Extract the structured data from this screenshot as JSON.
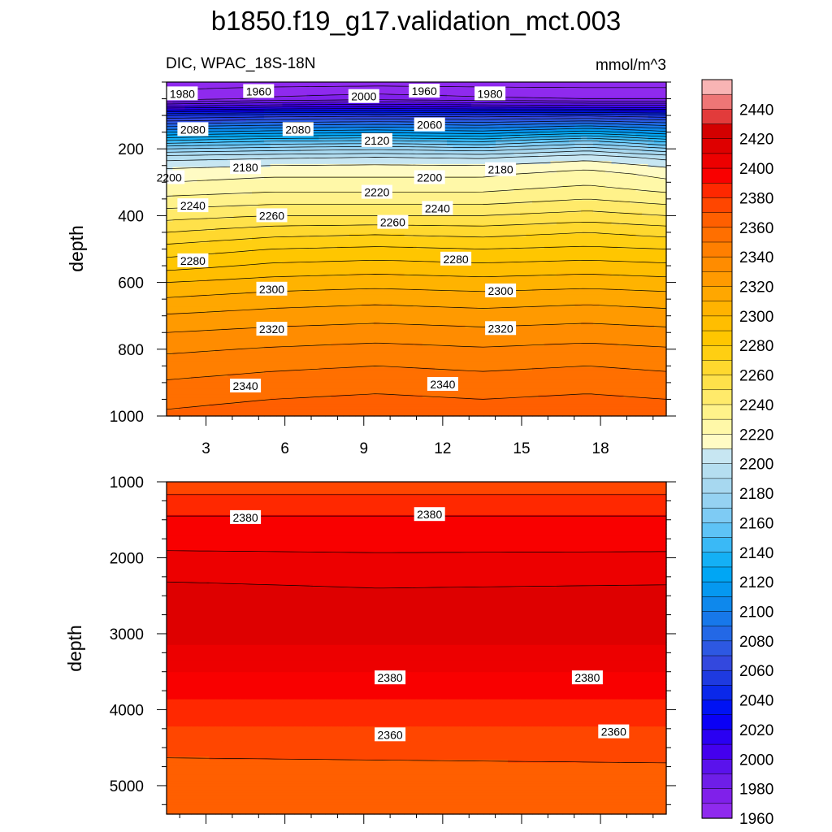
{
  "title": "b1850.f19_g17.validation_mct.003",
  "chart_data": {
    "type": "contour",
    "variable_label": "DIC, WPAC_18S-18N",
    "units": "mmol/m^3",
    "ylabel": "depth",
    "x_ticks": [
      3,
      6,
      9,
      12,
      15,
      18
    ],
    "x_range": [
      1.5,
      20.5
    ],
    "levels": [
      1950,
      1960,
      1970,
      1980,
      1990,
      2000,
      2010,
      2020,
      2030,
      2040,
      2050,
      2060,
      2070,
      2080,
      2090,
      2100,
      2110,
      2120,
      2130,
      2140,
      2150,
      2160,
      2170,
      2180,
      2190,
      2200,
      2210,
      2220,
      2230,
      2240,
      2250,
      2260,
      2270,
      2280,
      2290,
      2300,
      2310,
      2320,
      2330,
      2340,
      2350,
      2360,
      2370,
      2380,
      2390,
      2400,
      2410,
      2420,
      2430,
      2440,
      2450
    ],
    "colorbar": {
      "labels": [
        "2440",
        "2420",
        "2400",
        "2380",
        "2360",
        "2340",
        "2320",
        "2300",
        "2280",
        "2260",
        "2240",
        "2220",
        "2200",
        "2180",
        "2160",
        "2140",
        "2120",
        "2100",
        "2080",
        "2060",
        "2040",
        "2020",
        "2000",
        "1980",
        "1960"
      ],
      "colors": [
        "#f8b4b4",
        "#ee7676",
        "#e23b3b",
        "#d30000",
        "#de0000",
        "#ed0000",
        "#f90000",
        "#ff2800",
        "#ff4600",
        "#ff5f00",
        "#ff6f00",
        "#ff7f00",
        "#ff8c00",
        "#ff9a00",
        "#ffa700",
        "#ffb300",
        "#ffbe00",
        "#ffc600",
        "#ffcf12",
        "#ffd82e",
        "#ffe14a",
        "#ffea6a",
        "#fff28a",
        "#fff8a8",
        "#fffbc4",
        "#c7e6f2",
        "#b5def0",
        "#a7d8f0",
        "#95d2f2",
        "#7ecbf4",
        "#5ec3f6",
        "#3ab9f6",
        "#14b0f5",
        "#00a6f4",
        "#0598f0",
        "#0e88ec",
        "#1778ea",
        "#2368e6",
        "#2d58e2",
        "#3348de",
        "#1e3ae0",
        "#0a28ea",
        "#0012f4",
        "#0a00f6",
        "#2a00f2",
        "#4400ee",
        "#5a12ec",
        "#6e1ee8",
        "#8020ea",
        "#8f2aee"
      ]
    },
    "panels": [
      {
        "name": "upper",
        "y_range": [
          0,
          1000
        ],
        "y_ticks": [
          200,
          400,
          600,
          800,
          1000
        ],
        "row_depths": [
          0,
          50,
          75,
          100,
          125,
          150,
          175,
          200,
          225,
          250,
          275,
          300,
          350,
          400,
          450,
          500,
          550,
          600,
          650,
          700,
          750,
          800,
          850,
          900,
          950,
          1000
        ],
        "x_cols": [
          1.5,
          5.5,
          9.5,
          13.5,
          17.5,
          20.5
        ],
        "grid": [
          [
            1945,
            1945,
            1945,
            1945,
            1945,
            1945
          ],
          [
            1955,
            1962,
            1966,
            1962,
            1960,
            1960
          ],
          [
            1995,
            2000,
            2003,
            2000,
            1998,
            1998
          ],
          [
            2040,
            2045,
            2047,
            2045,
            2048,
            2043
          ],
          [
            2070,
            2075,
            2078,
            2075,
            2082,
            2074
          ],
          [
            2100,
            2105,
            2108,
            2104,
            2115,
            2103
          ],
          [
            2130,
            2138,
            2140,
            2136,
            2150,
            2135
          ],
          [
            2160,
            2165,
            2168,
            2164,
            2175,
            2162
          ],
          [
            2185,
            2188,
            2190,
            2188,
            2196,
            2186
          ],
          [
            2197,
            2200,
            2201,
            2200,
            2206,
            2198
          ],
          [
            2205,
            2208,
            2208,
            2208,
            2214,
            2207
          ],
          [
            2210,
            2213,
            2213,
            2213,
            2218,
            2212
          ],
          [
            2222,
            2225,
            2225,
            2225,
            2230,
            2225
          ],
          [
            2236,
            2240,
            2240,
            2240,
            2244,
            2240
          ],
          [
            2250,
            2256,
            2258,
            2256,
            2260,
            2256
          ],
          [
            2264,
            2270,
            2272,
            2270,
            2272,
            2270
          ],
          [
            2276,
            2282,
            2284,
            2282,
            2284,
            2282
          ],
          [
            2290,
            2294,
            2296,
            2294,
            2296,
            2294
          ],
          [
            2301,
            2305,
            2307,
            2305,
            2307,
            2305
          ],
          [
            2311,
            2314,
            2316,
            2314,
            2316,
            2314
          ],
          [
            2320,
            2323,
            2325,
            2323,
            2325,
            2323
          ],
          [
            2328,
            2331,
            2333,
            2331,
            2333,
            2331
          ],
          [
            2335,
            2338,
            2340,
            2338,
            2340,
            2338
          ],
          [
            2341,
            2344,
            2346,
            2344,
            2346,
            2344
          ],
          [
            2347,
            2350,
            2352,
            2350,
            2352,
            2350
          ],
          [
            2352,
            2355,
            2357,
            2355,
            2358,
            2355
          ]
        ],
        "labels": [
          {
            "text": "1980",
            "x": 2.1,
            "d": 35
          },
          {
            "text": "1960",
            "x": 5.0,
            "d": 28
          },
          {
            "text": "2000",
            "x": 9.0,
            "d": 43
          },
          {
            "text": "1960",
            "x": 11.3,
            "d": 27
          },
          {
            "text": "1980",
            "x": 13.8,
            "d": 35
          },
          {
            "text": "2080",
            "x": 2.5,
            "d": 142
          },
          {
            "text": "2080",
            "x": 6.5,
            "d": 142
          },
          {
            "text": "2060",
            "x": 11.5,
            "d": 128
          },
          {
            "text": "2120",
            "x": 9.5,
            "d": 175
          },
          {
            "text": "2180",
            "x": 4.5,
            "d": 256
          },
          {
            "text": "2180",
            "x": 14.2,
            "d": 262
          },
          {
            "text": "2200",
            "x": 1.6,
            "d": 286
          },
          {
            "text": "2200",
            "x": 11.5,
            "d": 286
          },
          {
            "text": "2220",
            "x": 9.5,
            "d": 330
          },
          {
            "text": "2240",
            "x": 2.5,
            "d": 370
          },
          {
            "text": "2240",
            "x": 11.8,
            "d": 378
          },
          {
            "text": "2260",
            "x": 5.5,
            "d": 400
          },
          {
            "text": "2260",
            "x": 10.1,
            "d": 420
          },
          {
            "text": "2280",
            "x": 2.5,
            "d": 535
          },
          {
            "text": "2280",
            "x": 12.5,
            "d": 530
          },
          {
            "text": "2300",
            "x": 5.5,
            "d": 620
          },
          {
            "text": "2300",
            "x": 14.2,
            "d": 625
          },
          {
            "text": "2320",
            "x": 5.5,
            "d": 740
          },
          {
            "text": "2320",
            "x": 14.2,
            "d": 738
          },
          {
            "text": "2340",
            "x": 4.5,
            "d": 910
          },
          {
            "text": "2340",
            "x": 12.0,
            "d": 905
          }
        ]
      },
      {
        "name": "lower",
        "y_range": [
          1000,
          5375
        ],
        "y_ticks": [
          1000,
          2000,
          3000,
          4000,
          5000
        ],
        "row_depths": [
          1000,
          1300,
          1700,
          2400,
          2900,
          3300,
          3800,
          4300,
          4800,
          5375
        ],
        "x_cols": [
          1.5,
          9.5,
          20.5
        ],
        "grid": [
          [
            2361,
            2361,
            2361
          ],
          [
            2377,
            2377,
            2377
          ],
          [
            2385,
            2385,
            2385
          ],
          [
            2402,
            2400,
            2401
          ],
          [
            2408,
            2407,
            2407
          ],
          [
            2395,
            2395,
            2395
          ],
          [
            2382,
            2382,
            2382
          ],
          [
            2368,
            2368,
            2368
          ],
          [
            2356,
            2357,
            2358
          ],
          [
            2350,
            2351,
            2352
          ]
        ],
        "labels": [
          {
            "text": "2380",
            "x": 4.5,
            "d": 1470
          },
          {
            "text": "2380",
            "x": 11.5,
            "d": 1430
          },
          {
            "text": "2380",
            "x": 10.0,
            "d": 3580
          },
          {
            "text": "2380",
            "x": 17.5,
            "d": 3580
          },
          {
            "text": "2360",
            "x": 10.0,
            "d": 4330
          },
          {
            "text": "2360",
            "x": 18.5,
            "d": 4290
          }
        ]
      }
    ]
  }
}
